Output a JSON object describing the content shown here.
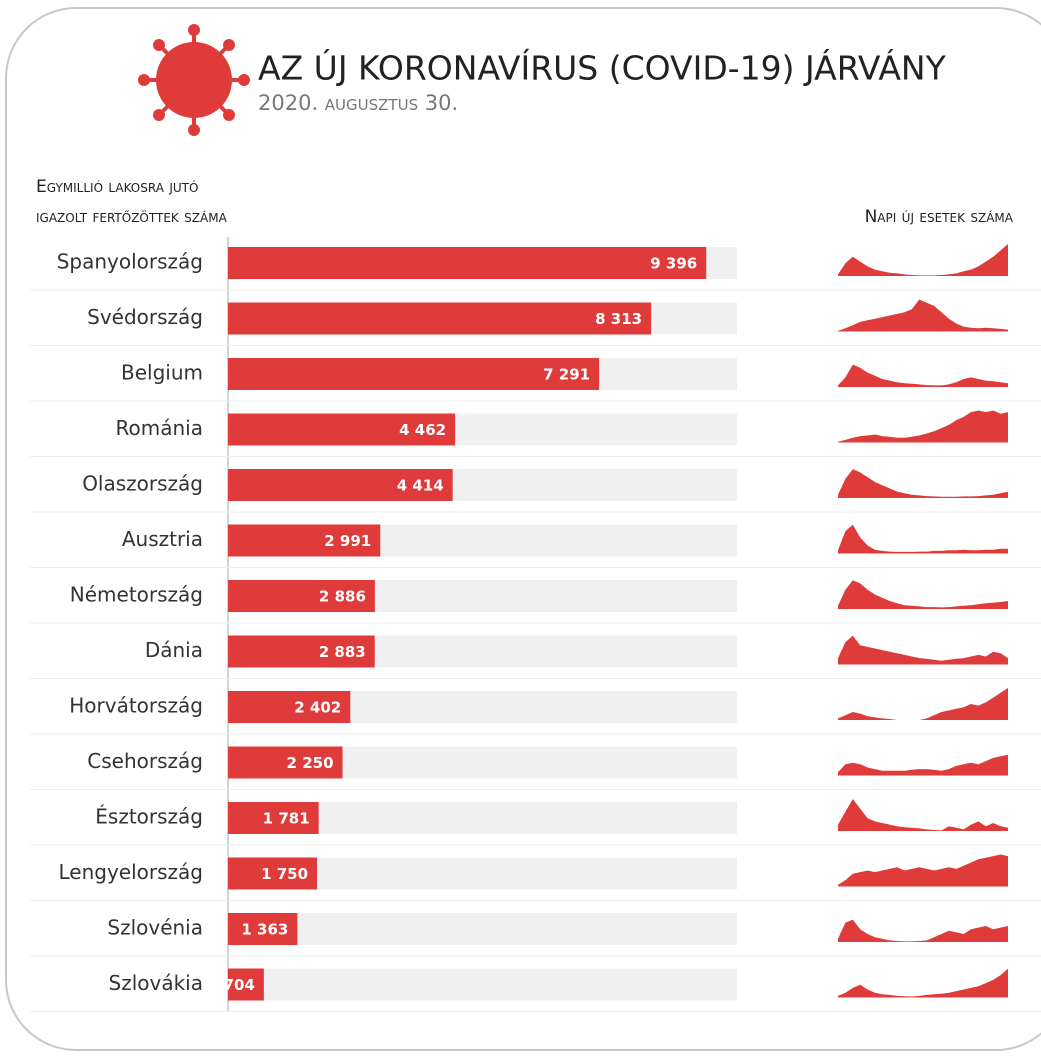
{
  "chart_data": [
    {
      "type": "bar",
      "title": "AZ ÚJ KORONAVÍRUS (COVID-19) JÁRVÁNY",
      "subtitle": "2020. augusztus 30.",
      "x_label": [
        "Egymillió lakosra jutó",
        "igazolt fertőzöttek száma"
      ],
      "categories": [
        "Spanyolország",
        "Svédország",
        "Belgium",
        "Románia",
        "Olaszország",
        "Ausztria",
        "Németország",
        "Dánia",
        "Horvátország",
        "Csehország",
        "Észtország",
        "Lengyelország",
        "Szlovénia",
        "Szlovákia"
      ],
      "values": [
        9396,
        8313,
        7291,
        4462,
        4414,
        2991,
        2886,
        2883,
        2402,
        2250,
        1781,
        1750,
        1363,
        704
      ],
      "value_labels": [
        "9 396",
        "8 313",
        "7 291",
        "4 462",
        "4 414",
        "2 991",
        "2 886",
        "2 883",
        "2 402",
        "2 250",
        "1 781",
        "1 750",
        "1 363",
        "704"
      ],
      "color": "#e03b3b",
      "xlim": [
        0,
        10000
      ]
    },
    {
      "type": "area",
      "title": "Napi új esetek száma",
      "color": "#e03b3b",
      "ylim": [
        0,
        100
      ],
      "series": [
        {
          "values": [
            5,
            40,
            60,
            45,
            30,
            20,
            15,
            10,
            8,
            5,
            3,
            2,
            2,
            2,
            3,
            5,
            8,
            15,
            20,
            30,
            45,
            60,
            80,
            100
          ]
        },
        {
          "values": [
            2,
            10,
            20,
            30,
            35,
            40,
            45,
            50,
            55,
            60,
            70,
            100,
            90,
            80,
            60,
            40,
            25,
            15,
            12,
            10,
            12,
            10,
            8,
            6
          ]
        },
        {
          "values": [
            5,
            30,
            70,
            60,
            45,
            35,
            25,
            20,
            15,
            12,
            10,
            8,
            6,
            5,
            5,
            8,
            15,
            25,
            30,
            25,
            20,
            18,
            15,
            12
          ]
        },
        {
          "values": [
            2,
            8,
            15,
            20,
            22,
            25,
            20,
            18,
            15,
            15,
            18,
            22,
            28,
            35,
            45,
            55,
            70,
            80,
            95,
            100,
            95,
            100,
            90,
            95
          ]
        },
        {
          "values": [
            10,
            60,
            90,
            80,
            65,
            50,
            40,
            30,
            20,
            15,
            10,
            8,
            6,
            5,
            4,
            4,
            4,
            5,
            5,
            6,
            8,
            10,
            15,
            20
          ]
        },
        {
          "values": [
            10,
            70,
            90,
            50,
            25,
            12,
            8,
            6,
            5,
            5,
            5,
            6,
            6,
            8,
            8,
            10,
            10,
            12,
            10,
            10,
            12,
            12,
            15,
            15
          ]
        },
        {
          "values": [
            10,
            60,
            90,
            80,
            60,
            45,
            35,
            25,
            18,
            12,
            10,
            8,
            6,
            6,
            5,
            6,
            8,
            10,
            12,
            15,
            18,
            20,
            22,
            25
          ]
        },
        {
          "values": [
            20,
            70,
            90,
            60,
            55,
            50,
            45,
            40,
            35,
            30,
            25,
            20,
            18,
            15,
            12,
            15,
            18,
            20,
            25,
            30,
            25,
            40,
            35,
            20
          ]
        },
        {
          "values": [
            5,
            15,
            25,
            20,
            12,
            8,
            5,
            3,
            0,
            0,
            0,
            0,
            5,
            15,
            25,
            30,
            35,
            40,
            50,
            45,
            55,
            70,
            85,
            100
          ]
        },
        {
          "values": [
            10,
            35,
            40,
            35,
            25,
            20,
            15,
            15,
            15,
            15,
            18,
            20,
            20,
            18,
            15,
            20,
            30,
            35,
            40,
            35,
            45,
            55,
            60,
            65
          ]
        },
        {
          "values": [
            20,
            60,
            100,
            70,
            40,
            30,
            25,
            20,
            15,
            12,
            10,
            8,
            5,
            3,
            2,
            15,
            10,
            5,
            20,
            30,
            15,
            25,
            15,
            10
          ]
        },
        {
          "values": [
            5,
            20,
            40,
            45,
            50,
            45,
            50,
            55,
            60,
            50,
            55,
            60,
            55,
            50,
            55,
            60,
            55,
            65,
            75,
            85,
            90,
            95,
            100,
            95
          ]
        },
        {
          "values": [
            10,
            60,
            70,
            40,
            25,
            15,
            10,
            5,
            3,
            2,
            2,
            3,
            5,
            15,
            25,
            35,
            30,
            25,
            40,
            45,
            50,
            40,
            45,
            50
          ]
        },
        {
          "values": [
            5,
            15,
            30,
            40,
            25,
            15,
            10,
            8,
            5,
            4,
            3,
            5,
            8,
            10,
            12,
            15,
            20,
            25,
            30,
            35,
            45,
            55,
            70,
            90
          ]
        }
      ]
    }
  ]
}
